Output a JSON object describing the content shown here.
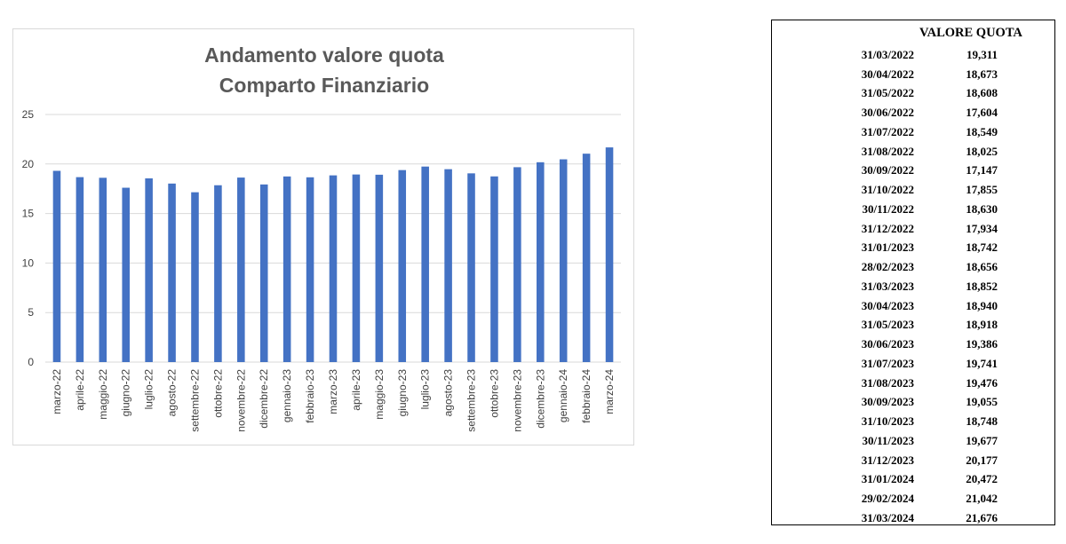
{
  "chart_data": {
    "type": "bar",
    "title": [
      "Andamento valore quota",
      "Comparto Finanziario"
    ],
    "categories": [
      "marzo-22",
      "aprile-22",
      "maggio-22",
      "giugno-22",
      "luglio-22",
      "agosto-22",
      "settembre-22",
      "ottobre-22",
      "novembre-22",
      "dicembre-22",
      "gennaio-23",
      "febbraio-23",
      "marzo-23",
      "aprile-23",
      "maggio-23",
      "giugno-23",
      "luglio-23",
      "agosto-23",
      "settembre-23",
      "ottobre-23",
      "novembre-23",
      "dicembre-23",
      "gennaio-24",
      "febbraio-24",
      "marzo-24"
    ],
    "values": [
      19.311,
      18.673,
      18.608,
      17.604,
      18.549,
      18.025,
      17.147,
      17.855,
      18.63,
      17.934,
      18.742,
      18.656,
      18.852,
      18.94,
      18.918,
      19.386,
      19.741,
      19.476,
      19.055,
      18.748,
      19.677,
      20.177,
      20.472,
      21.042,
      21.676
    ],
    "ylim": [
      0,
      25
    ],
    "yticks": [
      "0",
      "5",
      "10",
      "15",
      "20",
      "25"
    ],
    "grid": true,
    "bar_color": "#4472c4",
    "grid_color": "#d9d9d9"
  },
  "table": {
    "header": "VALORE QUOTA",
    "rows": [
      {
        "date": "31/03/2022",
        "value": "19,311"
      },
      {
        "date": "30/04/2022",
        "value": "18,673"
      },
      {
        "date": "31/05/2022",
        "value": "18,608"
      },
      {
        "date": "30/06/2022",
        "value": "17,604"
      },
      {
        "date": "31/07/2022",
        "value": "18,549"
      },
      {
        "date": "31/08/2022",
        "value": "18,025"
      },
      {
        "date": "30/09/2022",
        "value": "17,147"
      },
      {
        "date": "31/10/2022",
        "value": "17,855"
      },
      {
        "date": "30/11/2022",
        "value": "18,630"
      },
      {
        "date": "31/12/2022",
        "value": "17,934"
      },
      {
        "date": "31/01/2023",
        "value": "18,742"
      },
      {
        "date": "28/02/2023",
        "value": "18,656"
      },
      {
        "date": "31/03/2023",
        "value": "18,852"
      },
      {
        "date": "30/04/2023",
        "value": "18,940"
      },
      {
        "date": "31/05/2023",
        "value": "18,918"
      },
      {
        "date": "30/06/2023",
        "value": "19,386"
      },
      {
        "date": "31/07/2023",
        "value": "19,741"
      },
      {
        "date": "31/08/2023",
        "value": "19,476"
      },
      {
        "date": "30/09/2023",
        "value": "19,055"
      },
      {
        "date": "31/10/2023",
        "value": "18,748"
      },
      {
        "date": "30/11/2023",
        "value": "19,677"
      },
      {
        "date": "31/12/2023",
        "value": "20,177"
      },
      {
        "date": "31/01/2024",
        "value": "20,472"
      },
      {
        "date": "29/02/2024",
        "value": "21,042"
      },
      {
        "date": "31/03/2024",
        "value": "21,676"
      }
    ]
  }
}
